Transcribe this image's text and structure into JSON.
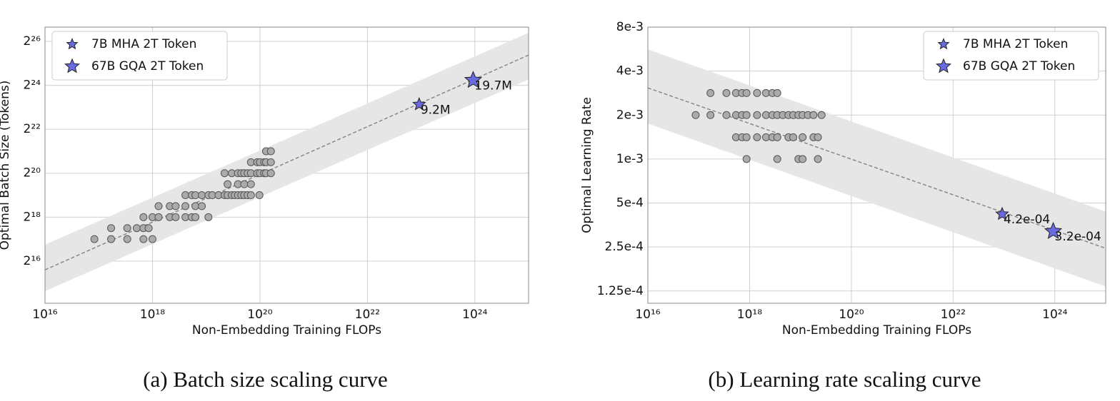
{
  "chart_data": [
    {
      "type": "scatter",
      "caption": "(a)  Batch size scaling curve",
      "xlabel": "Non-Embedding Training FLOPs",
      "ylabel": "Optimal Batch Size (Tokens)",
      "xlog": true,
      "ylog": true,
      "grid": true,
      "legend": "upper left",
      "xlim": [
        1e+16,
        1e+25
      ],
      "ylim": [
        17320,
        105300000
      ],
      "xticks": [
        {
          "value": 1e+16,
          "label": "10¹⁶"
        },
        {
          "value": 1e+18,
          "label": "10¹⁸"
        },
        {
          "value": 1e+20,
          "label": "10²⁰"
        },
        {
          "value": 1e+22,
          "label": "10²²"
        },
        {
          "value": 1e+24,
          "label": "10²⁴"
        }
      ],
      "yticks": [
        {
          "value": 65536,
          "label": "2¹⁶"
        },
        {
          "value": 262144,
          "label": "2¹⁸"
        },
        {
          "value": 1048576,
          "label": "2²⁰"
        },
        {
          "value": 4194304,
          "label": "2²²"
        },
        {
          "value": 16777216,
          "label": "2²⁴"
        },
        {
          "value": 67108864,
          "label": "2²⁶"
        }
      ],
      "fit": {
        "color": "#888888",
        "band_color": "#e6e6e6",
        "x": [
          1e+16,
          1e+25
        ],
        "values": [
          49700,
          43600000
        ],
        "lower": [
          25400,
          20200000
        ],
        "upper": [
          110000,
          87900000
        ]
      },
      "points": {
        "color": "#ababab",
        "x": [
          8.3e+16,
          1.7e+17,
          3.4e+17,
          6.8e+17,
          1e+18,
          1.7e+17,
          3.4e+17,
          5.1e+17,
          6.8e+17,
          8.5e+17,
          6.8e+17,
          1e+18,
          1.3e+18,
          2.1e+18,
          2.7e+18,
          4.1e+18,
          5.4e+18,
          6.3e+18,
          1.1e+19,
          1.3e+18,
          2.1e+18,
          2.7e+18,
          4.1e+18,
          6.3e+18,
          8.3e+18,
          4.1e+18,
          5.4e+18,
          6.3e+18,
          8.3e+18,
          1.1e+19,
          1.3e+19,
          1.7e+19,
          2.2e+19,
          2.5e+19,
          3e+19,
          3.4e+19,
          3.9e+19,
          4.5e+19,
          5.1e+19,
          5.9e+19,
          6.8e+19,
          9.8e+19,
          2.5e+19,
          3.9e+19,
          5.1e+19,
          6.8e+19,
          2.2e+19,
          3e+19,
          3.9e+19,
          4.5e+19,
          5.1e+19,
          5.9e+19,
          6.8e+19,
          8.9e+19,
          1e+20,
          1.2e+20,
          1.3e+20,
          1.6e+20,
          6.8e+19,
          8.9e+19,
          1e+20,
          1.2e+20,
          1.3e+20,
          1.6e+20,
          1.3e+20,
          1.6e+20
        ],
        "values": [
          131072,
          131072,
          131072,
          131072,
          131072,
          185364,
          185364,
          185364,
          185364,
          185364,
          262144,
          262144,
          262144,
          262144,
          262144,
          262144,
          262144,
          262144,
          262144,
          370728,
          370728,
          370728,
          370728,
          370728,
          370728,
          524288,
          524288,
          524288,
          524288,
          524288,
          524288,
          524288,
          524288,
          524288,
          524288,
          524288,
          524288,
          524288,
          524288,
          524288,
          524288,
          524288,
          741455,
          741455,
          741455,
          741455,
          1048576,
          1048576,
          1048576,
          1048576,
          1048576,
          1048576,
          1048576,
          1048576,
          1048576,
          1048576,
          1048576,
          1048576,
          1482910,
          1482910,
          1482910,
          1482910,
          1482910,
          1482910,
          2097152,
          2097152
        ]
      },
      "series": [
        {
          "name": "7B MHA 2T Token",
          "color": "#6a6ae0",
          "size": 9,
          "x": [
            9.2e+22
          ],
          "values": [
            9200000
          ],
          "value_labels": [
            "9.2M"
          ]
        },
        {
          "name": "67B GQA 2T Token",
          "color": "#6a6ae0",
          "size": 12,
          "x": [
            9.3e+23
          ],
          "values": [
            19700000
          ],
          "value_labels": [
            "19.7M"
          ]
        }
      ]
    },
    {
      "type": "scatter",
      "caption": "(b)  Learning rate scaling curve",
      "xlabel": "Non-Embedding Training FLOPs",
      "ylabel": "Optimal Learning Rate",
      "xlog": true,
      "ylog": true,
      "grid": true,
      "legend": "upper right",
      "xlim": [
        1e+16,
        1e+25
      ],
      "ylim": [
        0.000103,
        0.008
      ],
      "xticks": [
        {
          "value": 1e+16,
          "label": "10¹⁶"
        },
        {
          "value": 1e+18,
          "label": "10¹⁸"
        },
        {
          "value": 1e+20,
          "label": "10²⁰"
        },
        {
          "value": 1e+22,
          "label": "10²²"
        },
        {
          "value": 1e+24,
          "label": "10²⁴"
        }
      ],
      "yticks": [
        {
          "value": 0.000125,
          "label": "1.25e-4"
        },
        {
          "value": 0.00025,
          "label": "2.5e-4"
        },
        {
          "value": 0.0005,
          "label": "5e-4"
        },
        {
          "value": 0.001,
          "label": "1e-3"
        },
        {
          "value": 0.002,
          "label": "2e-3"
        },
        {
          "value": 0.004,
          "label": "4e-3"
        },
        {
          "value": 0.008,
          "label": "8e-3"
        }
      ],
      "fit": {
        "color": "#888888",
        "band_color": "#e6e6e6",
        "x": [
          1e+16,
          1e+25
        ],
        "values": [
          0.00307,
          0.000245
        ],
        "lower": [
          0.00175,
          0.000134
        ],
        "upper": [
          0.00563,
          0.000437
        ]
      },
      "points": {
        "color": "#ababab",
        "x": [
          1.7e+17,
          3.5e+17,
          5.4e+17,
          7.1e+17,
          8.7e+17,
          1.4e+18,
          2.1e+18,
          2.8e+18,
          3.5e+18,
          8.7e+16,
          1.7e+17,
          3.5e+17,
          5.4e+17,
          7.1e+17,
          8.7e+17,
          1.4e+18,
          2.1e+18,
          2.8e+18,
          3.5e+18,
          4.5e+18,
          5.8e+18,
          7.2e+18,
          9.1e+18,
          1.1e+19,
          1.4e+19,
          1.8e+19,
          2.6e+19,
          5.4e+17,
          7.1e+17,
          8.7e+17,
          1.4e+18,
          2.1e+18,
          2.8e+18,
          3.5e+18,
          5.8e+18,
          7.2e+18,
          1.1e+19,
          1.8e+19,
          2.2e+19,
          8.7e+17,
          3.5e+18,
          9.1e+18,
          1.1e+19,
          2.2e+19
        ],
        "values": [
          0.00283,
          0.00283,
          0.00283,
          0.00283,
          0.00283,
          0.00283,
          0.00283,
          0.00283,
          0.00283,
          0.002,
          0.002,
          0.002,
          0.002,
          0.002,
          0.002,
          0.002,
          0.002,
          0.002,
          0.002,
          0.002,
          0.002,
          0.002,
          0.002,
          0.002,
          0.002,
          0.002,
          0.002,
          0.00141,
          0.00141,
          0.00141,
          0.00141,
          0.00141,
          0.00141,
          0.00141,
          0.00141,
          0.00141,
          0.00141,
          0.00141,
          0.00141,
          0.001,
          0.001,
          0.001,
          0.001,
          0.001
        ]
      },
      "series": [
        {
          "name": "7B MHA 2T Token",
          "color": "#6a6ae0",
          "size": 9,
          "x": [
            9.2e+22
          ],
          "values": [
            0.00042
          ],
          "value_labels": [
            "4.2e-04"
          ]
        },
        {
          "name": "67B GQA 2T Token",
          "color": "#6a6ae0",
          "size": 12,
          "x": [
            9.3e+23
          ],
          "values": [
            0.00032
          ],
          "value_labels": [
            "3.2e-04"
          ]
        }
      ]
    }
  ]
}
